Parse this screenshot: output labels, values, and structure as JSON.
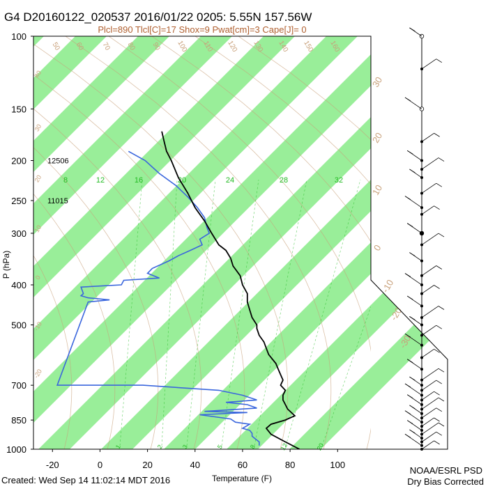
{
  "header": {
    "title": "G4 D20160122_020537 2016/01/22 0205:  5.55N 157.56W",
    "indices": "Plcl=890 Tlcl[C]=17 Shox=9 Pwat[cm]=3 Cape[J]= 0"
  },
  "footer": {
    "created": "Created: Wed Sep 14 11:02:14 MDT 2016",
    "org": "NOAA/ESRL PSD",
    "note": "Dry Bias Corrected"
  },
  "colors": {
    "band": "#99ee99",
    "temperature": "#000000",
    "dewpoint": "#3a66dd",
    "isotherm_labels": "#c8a07a",
    "mixing_ratio": "#22bb22",
    "adiabat": "#c8a07a"
  },
  "chart_data": {
    "type": "line",
    "xlabel": "Temperature (F)",
    "ylabel": "P (hPa)",
    "xlim": [
      -28,
      114
    ],
    "ylim": [
      1000,
      100
    ],
    "log_y": true,
    "x_ticks": [
      "-20",
      "0",
      "20",
      "40",
      "60",
      "80",
      "100"
    ],
    "y_ticks": [
      "100",
      "150",
      "200",
      "250",
      "300",
      "400",
      "500",
      "700",
      "850",
      "1000"
    ],
    "height_labels": [
      {
        "pressure": 200,
        "text": "12506"
      },
      {
        "pressure": 250,
        "text": "11015"
      }
    ],
    "mixing_ratio_labels": [
      "8",
      "12",
      "16",
      "20",
      "24",
      "28",
      "32"
    ],
    "bottom_mixing_ratio_labels": [
      "1",
      "2",
      "3",
      "5",
      "8",
      "12",
      "20"
    ],
    "isotherm_labels_top": [
      "50",
      "60",
      "70",
      "80",
      "90",
      "100",
      "110",
      "120",
      "130",
      "140",
      "150",
      "160"
    ],
    "isotherm_labels_right": [
      "30",
      "20",
      "10",
      "0",
      "-10",
      "-20",
      "-30"
    ],
    "isotherm_labels_left": [
      "40",
      "30",
      "20",
      "10",
      "0",
      "-10",
      "-20"
    ],
    "series": [
      {
        "key": "temperature",
        "points": [
          [
            84,
            1000
          ],
          [
            78,
            960
          ],
          [
            72,
            920
          ],
          [
            70,
            890
          ],
          [
            72,
            870
          ],
          [
            78,
            850
          ],
          [
            82,
            830
          ],
          [
            79,
            800
          ],
          [
            77,
            760
          ],
          [
            77,
            740
          ],
          [
            78,
            720
          ],
          [
            76,
            700
          ],
          [
            77,
            680
          ],
          [
            76,
            660
          ],
          [
            75,
            640
          ],
          [
            74,
            620
          ],
          [
            71,
            590
          ],
          [
            70,
            570
          ],
          [
            69,
            550
          ],
          [
            67,
            530
          ],
          [
            66,
            510
          ],
          [
            66,
            500
          ],
          [
            64,
            480
          ],
          [
            63,
            460
          ],
          [
            62,
            440
          ],
          [
            62,
            420
          ],
          [
            60,
            400
          ],
          [
            59,
            380
          ],
          [
            56,
            360
          ],
          [
            55,
            345
          ],
          [
            53,
            330
          ],
          [
            50,
            320
          ],
          [
            47,
            300
          ],
          [
            44,
            280
          ],
          [
            40,
            260
          ],
          [
            37,
            240
          ],
          [
            33,
            220
          ],
          [
            30,
            200
          ],
          [
            28,
            190
          ],
          [
            27,
            180
          ],
          [
            26,
            170
          ]
        ]
      },
      {
        "key": "dewpoint",
        "points": [
          [
            67,
            980
          ],
          [
            67,
            960
          ],
          [
            65,
            940
          ],
          [
            64,
            930
          ],
          [
            64,
            915
          ],
          [
            63,
            900
          ],
          [
            60,
            890
          ],
          [
            63,
            870
          ],
          [
            57,
            860
          ],
          [
            55,
            845
          ],
          [
            42,
            825
          ],
          [
            62,
            815
          ],
          [
            44,
            810
          ],
          [
            66,
            795
          ],
          [
            62,
            780
          ],
          [
            53,
            770
          ],
          [
            66,
            760
          ],
          [
            60,
            740
          ],
          [
            50,
            720
          ],
          [
            18,
            700
          ],
          [
            -18,
            700
          ],
          [
            -5,
            440
          ],
          [
            4,
            435
          ],
          [
            -5,
            430
          ],
          [
            -8,
            425
          ],
          [
            -7,
            420
          ],
          [
            -8,
            405
          ],
          [
            9,
            400
          ],
          [
            10,
            390
          ],
          [
            25,
            385
          ],
          [
            20,
            375
          ],
          [
            22,
            365
          ],
          [
            29,
            350
          ],
          [
            33,
            340
          ],
          [
            38,
            330
          ],
          [
            43,
            320
          ],
          [
            42,
            310
          ],
          [
            46,
            300
          ],
          [
            45,
            290
          ],
          [
            44,
            275
          ],
          [
            41,
            260
          ],
          [
            37,
            245
          ],
          [
            32,
            230
          ],
          [
            25,
            215
          ],
          [
            19,
            200
          ],
          [
            12,
            190
          ]
        ]
      }
    ]
  }
}
